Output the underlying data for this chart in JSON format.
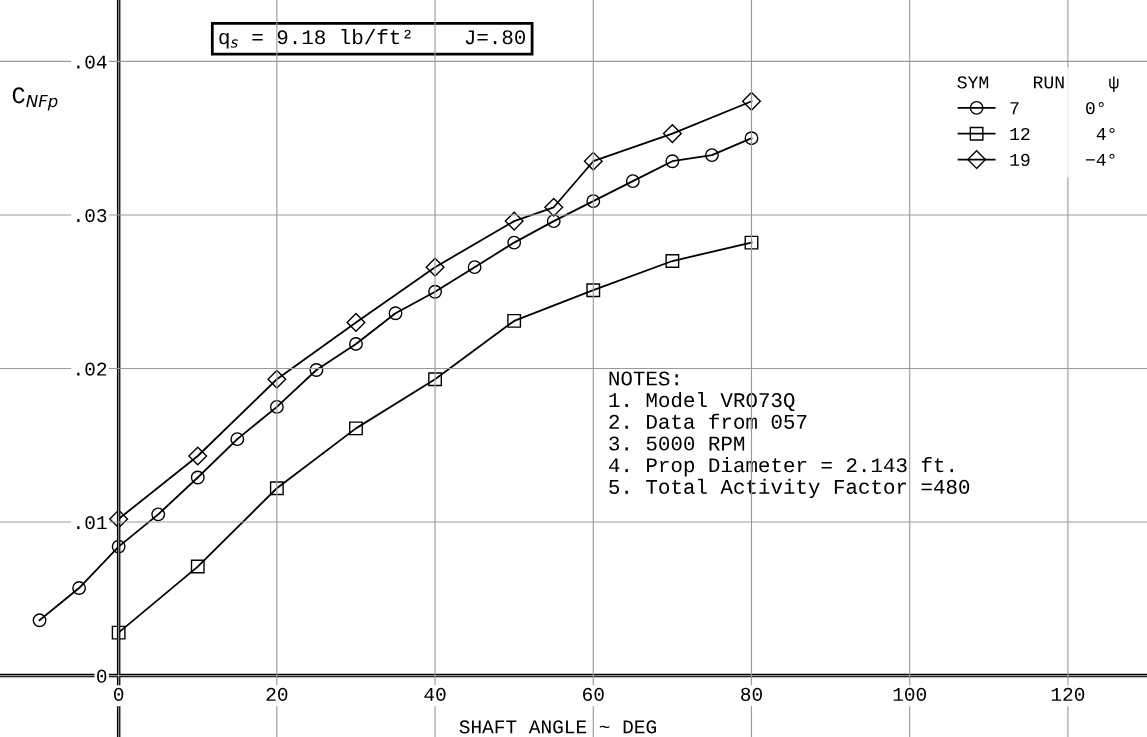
{
  "chart_data": {
    "type": "line",
    "title": "q$_{s}$ = 9.18 lb/ft²    J=.80",
    "xlabel": "SHAFT ANGLE ~ DEG",
    "ylabel": "C$_{NFp}$",
    "legend_title": "SYM    RUN    ψ",
    "legend": "top right",
    "grid": true,
    "xlim": [
      -15,
      130
    ],
    "ylim": [
      -0.004,
      0.044
    ],
    "xticks": [
      0,
      20,
      40,
      60,
      80,
      100,
      120
    ],
    "yticks": [
      0,
      {
        "value": 0.01,
        "label": ".01"
      },
      {
        "value": 0.02,
        "label": ".02"
      },
      {
        "value": 0.03,
        "label": ".03"
      },
      {
        "value": 0.04,
        "label": ".04"
      }
    ],
    "series": [
      {
        "name": "7      0°",
        "color": "#000000",
        "marker": "circle",
        "x": [
          -10,
          -5,
          0,
          5,
          10,
          15,
          20,
          25,
          30,
          35,
          40,
          45,
          50,
          55,
          60,
          65,
          70,
          75,
          80
        ],
        "values": [
          0.0036,
          0.0057,
          0.0084,
          0.0105,
          0.0129,
          0.0154,
          0.0175,
          0.0199,
          0.0216,
          0.0236,
          0.025,
          0.0266,
          0.0282,
          0.0296,
          0.0309,
          0.0322,
          0.0335,
          0.0339,
          0.035
        ]
      },
      {
        "name": "12      4°",
        "color": "#000000",
        "marker": "square",
        "x": [
          0,
          10,
          20,
          30,
          40,
          50,
          60,
          70,
          80
        ],
        "values": [
          0.0028,
          0.0071,
          0.0122,
          0.0161,
          0.0193,
          0.0231,
          0.0251,
          0.027,
          0.0282
        ]
      },
      {
        "name": "19     −4°",
        "color": "#000000",
        "marker": "diamond",
        "x": [
          0,
          10,
          20,
          30,
          40,
          50,
          55,
          60,
          70,
          80
        ],
        "values": [
          0.0102,
          0.0143,
          0.0193,
          0.023,
          0.0266,
          0.0296,
          0.0305,
          0.0335,
          0.0353,
          0.0374
        ]
      }
    ],
    "annotations": [
      "NOTES:\n1. Model VRO73Q\n2. Data from 057\n3. 5000 RPM\n4. Prop Diameter = 2.143 ft.\n5. Total Activity Factor =480"
    ]
  }
}
